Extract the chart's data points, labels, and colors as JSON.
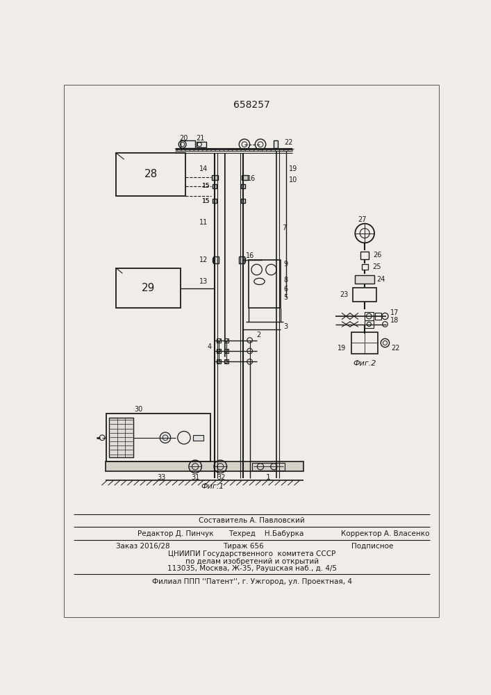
{
  "patent_number": "658257",
  "bg_color": "#f0ede8",
  "line_color": "#1a1a1a",
  "fig1_caption": "Фиг.1",
  "fig2_caption": "Фиг.2",
  "footer_composer": "Составитель А. Павловский",
  "footer_editor": "Редактор Д. Пинчук",
  "footer_tech": "Техред    Н.Бабурка",
  "footer_corrector": "Корректор А. Власенко",
  "footer_order": "Заказ 2016/28",
  "footer_tirazh": "Тираж 656",
  "footer_podp": "Подписное",
  "footer_org1": "ЦНИИПИ Государственного  комитета СССР",
  "footer_org2": "по делам изобретений и открытий",
  "footer_addr": "113035, Москва, Ж-35, Раушская наб., д. 4/5",
  "footer_filial": "Филиал ППП ''Патент'', г. Ужгород, ул. Проектная, 4"
}
